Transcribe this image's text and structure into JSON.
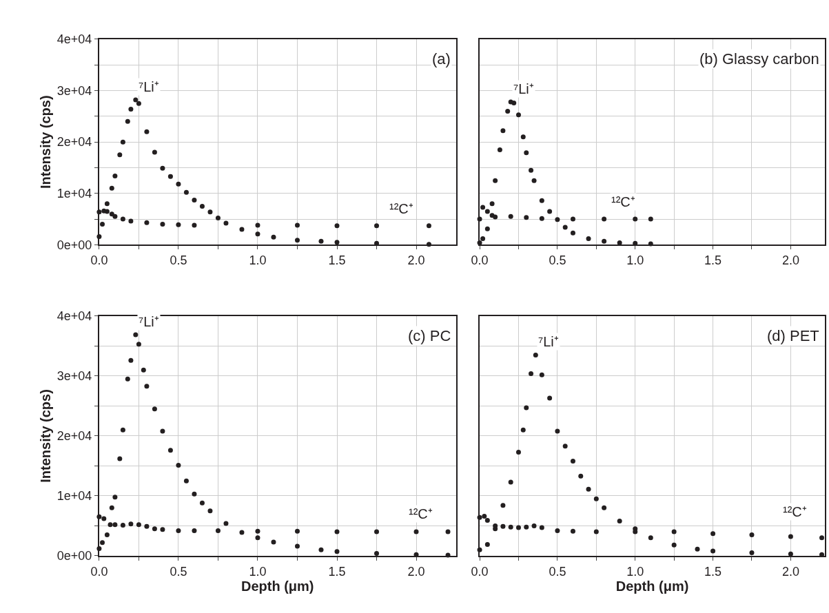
{
  "chart_data": [
    {
      "type": "scatter",
      "title": "(a)",
      "ylabel": "Intensity (cps)",
      "marker": "circle",
      "grid": true,
      "xlim": [
        0,
        2.25
      ],
      "ylim": [
        0,
        40000
      ],
      "xticks": [
        {
          "value": 0,
          "label": "0.0"
        },
        {
          "value": 0.25,
          "label": null
        },
        {
          "value": 0.5,
          "label": "0.5"
        },
        {
          "value": 0.75,
          "label": null
        },
        {
          "value": 1,
          "label": "1.0"
        },
        {
          "value": 1.25,
          "label": null
        },
        {
          "value": 1.5,
          "label": "1.5"
        },
        {
          "value": 1.75,
          "label": null
        },
        {
          "value": 2,
          "label": "2.0"
        }
      ],
      "yticks": [
        {
          "value": 0,
          "label": "0e+00"
        },
        {
          "value": 5000,
          "label": null
        },
        {
          "value": 10000,
          "label": "1e+04"
        },
        {
          "value": 15000,
          "label": null
        },
        {
          "value": 20000,
          "label": "2e+04"
        },
        {
          "value": 25000,
          "label": null
        },
        {
          "value": 30000,
          "label": "3e+04"
        },
        {
          "value": 35000,
          "label": null
        },
        {
          "value": 40000,
          "label": "4e+04"
        }
      ],
      "series": [
        {
          "name": "⁷Li⁺",
          "color": "#231f20",
          "x": [
            0,
            0.02,
            0.05,
            0.08,
            0.1,
            0.13,
            0.15,
            0.18,
            0.2,
            0.23,
            0.25,
            0.3,
            0.35,
            0.4,
            0.45,
            0.5,
            0.55,
            0.6,
            0.65,
            0.7,
            0.75,
            0.8,
            0.9,
            1.0,
            1.1,
            1.25,
            1.4,
            1.5,
            1.75,
            2.08
          ],
          "values": [
            1600,
            4000,
            8000,
            11000,
            13400,
            17500,
            20000,
            24000,
            26400,
            28200,
            27500,
            22000,
            18000,
            14900,
            13300,
            11800,
            10200,
            8700,
            7500,
            6400,
            5200,
            4200,
            3000,
            2100,
            1500,
            900,
            700,
            500,
            300,
            100
          ]
        },
        {
          "name": "¹²C⁺",
          "color": "#231f20",
          "x": [
            0,
            0.03,
            0.05,
            0.08,
            0.1,
            0.15,
            0.2,
            0.3,
            0.4,
            0.5,
            0.6,
            1.0,
            1.25,
            1.5,
            1.75,
            2.08
          ],
          "values": [
            6400,
            6600,
            6500,
            6000,
            5500,
            5000,
            4600,
            4300,
            4000,
            3900,
            3800,
            3800,
            3800,
            3700,
            3700,
            3700
          ]
        }
      ]
    },
    {
      "type": "scatter",
      "title": "(b) Glassy carbon",
      "marker": "circle",
      "grid": true,
      "tick_labels": "x",
      "xlim": [
        0,
        2.22
      ],
      "ylim": [
        0,
        40000
      ],
      "xticks": [
        {
          "value": 0,
          "label": "0.0"
        },
        {
          "value": 0.25,
          "label": null
        },
        {
          "value": 0.5,
          "label": "0.5"
        },
        {
          "value": 0.75,
          "label": null
        },
        {
          "value": 1,
          "label": "1.0"
        },
        {
          "value": 1.25,
          "label": null
        },
        {
          "value": 1.5,
          "label": "1.5"
        },
        {
          "value": 1.75,
          "label": null
        },
        {
          "value": 2,
          "label": "2.0"
        }
      ],
      "yticks": [
        0,
        5000,
        10000,
        15000,
        20000,
        25000,
        30000,
        35000,
        40000
      ],
      "series": [
        {
          "name": "⁷Li⁺",
          "color": "#231f20",
          "x": [
            0,
            0.02,
            0.05,
            0.08,
            0.1,
            0.13,
            0.15,
            0.18,
            0.2,
            0.22,
            0.25,
            0.28,
            0.3,
            0.33,
            0.35,
            0.4,
            0.45,
            0.5,
            0.55,
            0.6,
            0.7,
            0.8,
            0.9,
            1.0,
            1.1
          ],
          "values": [
            400,
            1200,
            3100,
            8000,
            12500,
            18500,
            22200,
            26000,
            27800,
            27600,
            25300,
            21000,
            17900,
            14500,
            12500,
            8600,
            6500,
            4900,
            3400,
            2300,
            1200,
            700,
            400,
            300,
            200
          ]
        },
        {
          "name": "¹²C⁺",
          "color": "#231f20",
          "x": [
            0,
            0.02,
            0.05,
            0.08,
            0.1,
            0.2,
            0.3,
            0.4,
            0.6,
            0.8,
            1.0,
            1.1
          ],
          "values": [
            5000,
            7300,
            6500,
            5700,
            5400,
            5500,
            5300,
            5100,
            5000,
            5000,
            5000,
            5000
          ]
        }
      ]
    },
    {
      "type": "scatter",
      "title": "(c) PC",
      "xlabel": "Depth (μm)",
      "ylabel": "Intensity (cps)",
      "marker": "circle",
      "grid": true,
      "xlim": [
        0,
        2.25
      ],
      "ylim": [
        0,
        40000
      ],
      "xticks": [
        {
          "value": 0,
          "label": "0.0"
        },
        {
          "value": 0.25,
          "label": null
        },
        {
          "value": 0.5,
          "label": "0.5"
        },
        {
          "value": 0.75,
          "label": null
        },
        {
          "value": 1,
          "label": "1.0"
        },
        {
          "value": 1.25,
          "label": null
        },
        {
          "value": 1.5,
          "label": "1.5"
        },
        {
          "value": 1.75,
          "label": null
        },
        {
          "value": 2,
          "label": "2.0"
        }
      ],
      "yticks": [
        {
          "value": 0,
          "label": "0e+00"
        },
        {
          "value": 5000,
          "label": null
        },
        {
          "value": 10000,
          "label": "1e+04"
        },
        {
          "value": 15000,
          "label": null
        },
        {
          "value": 20000,
          "label": "2e+04"
        },
        {
          "value": 25000,
          "label": null
        },
        {
          "value": 30000,
          "label": "3e+04"
        },
        {
          "value": 35000,
          "label": null
        },
        {
          "value": 40000,
          "label": "4e+04"
        }
      ],
      "series": [
        {
          "name": "⁷Li⁺",
          "color": "#231f20",
          "x": [
            0,
            0.02,
            0.05,
            0.08,
            0.1,
            0.13,
            0.15,
            0.18,
            0.2,
            0.23,
            0.25,
            0.28,
            0.3,
            0.35,
            0.4,
            0.45,
            0.5,
            0.55,
            0.6,
            0.65,
            0.7,
            0.8,
            0.9,
            1.0,
            1.1,
            1.25,
            1.4,
            1.5,
            1.75,
            2.0,
            2.2
          ],
          "values": [
            1200,
            2200,
            3500,
            8000,
            9800,
            16200,
            21000,
            29500,
            32600,
            36900,
            35300,
            31000,
            28300,
            24500,
            20800,
            17600,
            15100,
            12500,
            10300,
            8800,
            7500,
            5400,
            3900,
            3000,
            2300,
            1600,
            1000,
            700,
            400,
            200,
            100
          ]
        },
        {
          "name": "¹²C⁺",
          "color": "#231f20",
          "x": [
            0,
            0.03,
            0.07,
            0.1,
            0.15,
            0.2,
            0.25,
            0.3,
            0.35,
            0.4,
            0.5,
            0.6,
            0.75,
            1.0,
            1.25,
            1.5,
            1.75,
            2.0,
            2.2
          ],
          "values": [
            6500,
            6200,
            5200,
            5200,
            5100,
            5300,
            5200,
            4900,
            4500,
            4400,
            4200,
            4200,
            4200,
            4100,
            4100,
            4000,
            4000,
            4000,
            4000
          ]
        }
      ]
    },
    {
      "type": "scatter",
      "title": "(d) PET",
      "xlabel": "Depth (μm)",
      "marker": "circle",
      "grid": true,
      "tick_labels": "x",
      "xlim": [
        0,
        2.22
      ],
      "ylim": [
        0,
        40000
      ],
      "xticks": [
        {
          "value": 0,
          "label": "0.0"
        },
        {
          "value": 0.25,
          "label": null
        },
        {
          "value": 0.5,
          "label": "0.5"
        },
        {
          "value": 0.75,
          "label": null
        },
        {
          "value": 1,
          "label": "1.0"
        },
        {
          "value": 1.25,
          "label": null
        },
        {
          "value": 1.5,
          "label": "1.5"
        },
        {
          "value": 1.75,
          "label": null
        },
        {
          "value": 2,
          "label": "2.0"
        }
      ],
      "yticks": [
        0,
        5000,
        10000,
        15000,
        20000,
        25000,
        30000,
        35000,
        40000
      ],
      "series": [
        {
          "name": "⁷Li⁺",
          "color": "#231f20",
          "x": [
            0,
            0.05,
            0.1,
            0.15,
            0.2,
            0.25,
            0.28,
            0.3,
            0.33,
            0.36,
            0.4,
            0.45,
            0.5,
            0.55,
            0.6,
            0.65,
            0.7,
            0.75,
            0.8,
            0.9,
            1.0,
            1.1,
            1.25,
            1.4,
            1.5,
            1.75,
            2.0,
            2.2
          ],
          "values": [
            1000,
            1900,
            4500,
            8400,
            12300,
            17300,
            21000,
            24700,
            30400,
            33500,
            30200,
            26300,
            20800,
            18300,
            15800,
            13300,
            11100,
            9500,
            8000,
            5800,
            4500,
            3000,
            1800,
            1100,
            800,
            500,
            300,
            200
          ]
        },
        {
          "name": "¹²C⁺",
          "color": "#231f20",
          "x": [
            0,
            0.03,
            0.05,
            0.1,
            0.15,
            0.2,
            0.25,
            0.3,
            0.35,
            0.4,
            0.5,
            0.6,
            0.75,
            1.0,
            1.25,
            1.5,
            1.75,
            2.0,
            2.2
          ],
          "values": [
            6400,
            6600,
            5900,
            5000,
            4900,
            4800,
            4700,
            4800,
            5000,
            4700,
            4200,
            4100,
            4000,
            4000,
            4000,
            3700,
            3500,
            3200,
            3000
          ]
        }
      ]
    }
  ]
}
